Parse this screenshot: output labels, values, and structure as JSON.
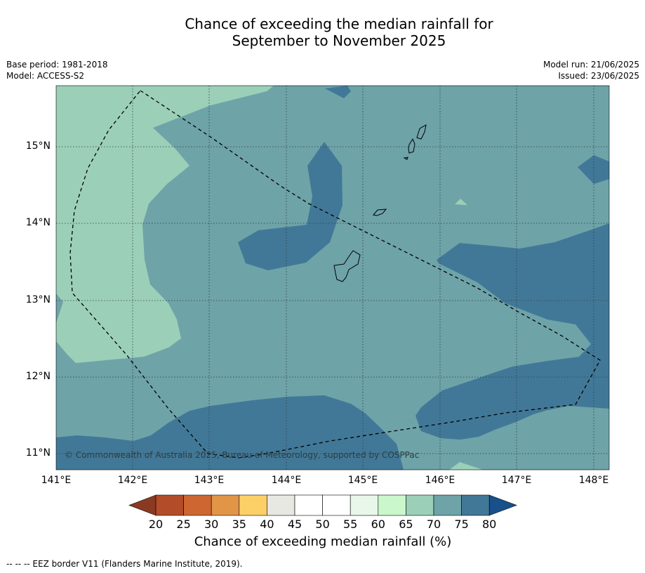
{
  "title_line1": "Chance of exceeding the median rainfall for",
  "title_line2": "September to November 2025",
  "meta_left": {
    "base_period": "Base period: 1981-2018",
    "model": "Model: ACCESS-S2"
  },
  "meta_right": {
    "model_run": "Model run: 21/06/2025",
    "issued": "Issued: 23/06/2025"
  },
  "map": {
    "lat_labels": [
      "15°N",
      "14°N",
      "13°N",
      "12°N",
      "11°N"
    ],
    "lon_labels": [
      "141°E",
      "142°E",
      "143°E",
      "144°E",
      "145°E",
      "146°E",
      "147°E",
      "148°E"
    ],
    "copyright": "© Commonwealth of Australia 2025, Bureau of Meteorology, supported by COSPPac",
    "extent": {
      "lon_min": 141.0,
      "lon_max": 148.2,
      "lat_min": 10.8,
      "lat_max": 15.8
    },
    "colors": {
      "c65_70": "#9ccfb8",
      "c70_75": "#6ea3a8",
      "c75_80": "#427897",
      "eez": "#000000"
    }
  },
  "colorbar": {
    "ticks": [
      "20",
      "25",
      "30",
      "35",
      "40",
      "45",
      "50",
      "55",
      "60",
      "65",
      "70",
      "75",
      "80"
    ],
    "under_color": "#8a3a22",
    "over_color": "#17508a",
    "bin_colors": [
      "#b34c28",
      "#cd6631",
      "#e19546",
      "#fdcf67",
      "#e8e8e3",
      "#ffffff",
      "#ffffff",
      "#e8f7e9",
      "#caf7cb",
      "#9ccfb8",
      "#6ea3a8",
      "#427897"
    ],
    "title": "Chance of exceeding median rainfall (%)"
  },
  "footer": "--  --  -- EEZ border V11 (Flanders Marine Institute, 2019)."
}
